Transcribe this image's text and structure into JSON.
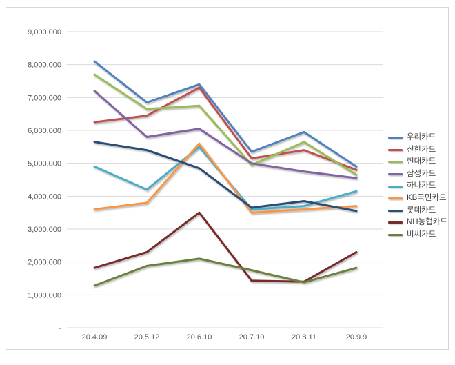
{
  "window": {
    "background": "#ffffff",
    "frame_border_color": "#d6d6d6",
    "gridline_color": "#d9d9d9",
    "axis_label_color": "#595959",
    "legend_text_color": "#3f3f3f"
  },
  "chart_data": {
    "type": "line",
    "title": "",
    "xlabel": "",
    "ylabel": "",
    "grid": true,
    "legend_position": "right",
    "categories": [
      "20.4.09",
      "20.5.12",
      "20.6.10",
      "20.7.10",
      "20.8.11",
      "20.9.9"
    ],
    "ylim": [
      0,
      9000000
    ],
    "ytick_step": 1000000,
    "ytick_labels": [
      "-",
      "1,000,000",
      "2,000,000",
      "3,000,000",
      "4,000,000",
      "5,000,000",
      "6,000,000",
      "7,000,000",
      "8,000,000",
      "9,000,000"
    ],
    "series": [
      {
        "name": "우리카드",
        "color": "#4F81BD",
        "values": [
          8100000,
          6850000,
          7400000,
          5350000,
          5950000,
          4900000
        ]
      },
      {
        "name": "신한카드",
        "color": "#C0504D",
        "values": [
          6250000,
          6450000,
          7300000,
          5150000,
          5400000,
          4800000
        ]
      },
      {
        "name": "현대카드",
        "color": "#9BBB59",
        "values": [
          7700000,
          6650000,
          6750000,
          4950000,
          5650000,
          4650000
        ]
      },
      {
        "name": "삼성카드",
        "color": "#8064A2",
        "values": [
          7200000,
          5800000,
          6050000,
          5000000,
          4750000,
          4550000
        ]
      },
      {
        "name": "하나카드",
        "color": "#4BACC6",
        "values": [
          4900000,
          4200000,
          5500000,
          3600000,
          3700000,
          4150000
        ]
      },
      {
        "name": "KB국민카드",
        "color": "#F79646",
        "values": [
          3600000,
          3800000,
          5600000,
          3500000,
          3600000,
          3700000
        ]
      },
      {
        "name": "롯데카드",
        "color": "#2C4D75",
        "values": [
          5650000,
          5400000,
          4850000,
          3650000,
          3850000,
          3550000
        ]
      },
      {
        "name": "NH농협카드",
        "color": "#772C2A",
        "values": [
          1820000,
          2300000,
          3500000,
          1430000,
          1400000,
          2300000
        ]
      },
      {
        "name": "비씨카드",
        "color": "#69803A",
        "values": [
          1280000,
          1880000,
          2100000,
          1750000,
          1380000,
          1820000
        ]
      }
    ]
  }
}
